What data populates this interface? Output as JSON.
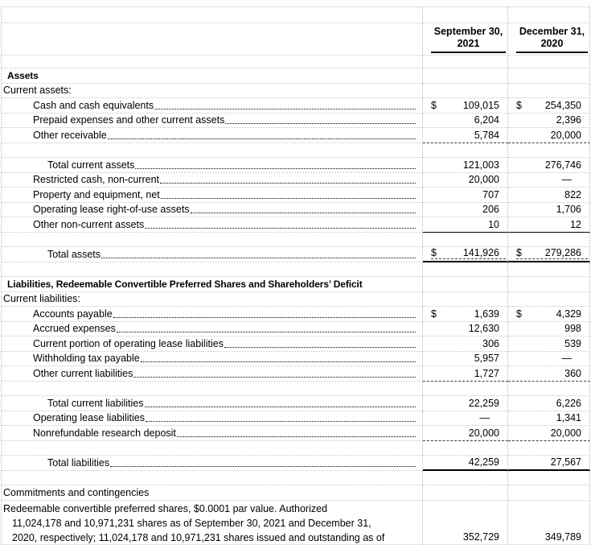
{
  "columns": [
    {
      "line1": "September 30,",
      "line2": "2021"
    },
    {
      "line1": "December 31,",
      "line2": "2020"
    }
  ],
  "rows": [
    {
      "kind": "section",
      "label": "Assets"
    },
    {
      "kind": "group",
      "label": "Current assets:"
    },
    {
      "kind": "item",
      "label": "Cash and cash equivalents",
      "dots": true,
      "cur1": "$",
      "v1": "109,015",
      "cur2": "$",
      "v2": "254,350"
    },
    {
      "kind": "item",
      "label": "Prepaid expenses and other current assets",
      "dots": true,
      "v1": "6,204",
      "v2": "2,396"
    },
    {
      "kind": "item",
      "label": "Other receivable",
      "dots": true,
      "v1": "5,784",
      "v2": "20,000",
      "underline": "dashed"
    },
    {
      "kind": "blank"
    },
    {
      "kind": "total",
      "label": "Total current assets",
      "dots": true,
      "v1": "121,003",
      "v2": "276,746"
    },
    {
      "kind": "item",
      "label": "Restricted cash, non-current",
      "dots": true,
      "v1": "20,000",
      "v2": "—"
    },
    {
      "kind": "item",
      "label": "Property and equipment, net",
      "dots": true,
      "v1": "707",
      "v2": "822"
    },
    {
      "kind": "item",
      "label": "Operating lease right-of-use assets",
      "dots": true,
      "v1": "206",
      "v2": "1,706"
    },
    {
      "kind": "item",
      "label": "Other non-current assets",
      "dots": true,
      "v1": "10",
      "v2": "12",
      "underline": "solid"
    },
    {
      "kind": "blank"
    },
    {
      "kind": "total",
      "label": "Total assets",
      "dots": true,
      "cur1": "$",
      "v1": "141,926",
      "cur2": "$",
      "v2": "279,286",
      "underline": "double"
    },
    {
      "kind": "blank"
    },
    {
      "kind": "section",
      "label": "Liabilities, Redeemable Convertible Preferred Shares and Shareholders’ Deficit"
    },
    {
      "kind": "group",
      "label": "Current liabilities:"
    },
    {
      "kind": "item",
      "label": "Accounts payable",
      "dots": true,
      "cur1": "$",
      "v1": "1,639",
      "cur2": "$",
      "v2": "4,329"
    },
    {
      "kind": "item",
      "label": "Accrued expenses",
      "dots": true,
      "v1": "12,630",
      "v2": "998"
    },
    {
      "kind": "item",
      "label": "Current portion of operating lease liabilities",
      "dots": true,
      "v1": "306",
      "v2": "539"
    },
    {
      "kind": "item",
      "label": "Withholding tax payable",
      "dots": true,
      "v1": "5,957",
      "v2": "—"
    },
    {
      "kind": "item",
      "label": "Other current liabilities",
      "dots": true,
      "v1": "1,727",
      "v2": "360",
      "underline": "dashed"
    },
    {
      "kind": "blank"
    },
    {
      "kind": "total",
      "label": "Total current liabilities",
      "dots": true,
      "v1": "22,259",
      "v2": "6,226"
    },
    {
      "kind": "item",
      "label": "Operating lease liabilities",
      "dots": true,
      "v1": "—",
      "v2": "1,341"
    },
    {
      "kind": "item",
      "label": "Nonrefundable research deposit",
      "dots": true,
      "v1": "20,000",
      "v2": "20,000",
      "underline": "dashed"
    },
    {
      "kind": "blank"
    },
    {
      "kind": "total",
      "label": "Total liabilities",
      "dots": true,
      "v1": "42,259",
      "v2": "27,567",
      "underline": "thick"
    },
    {
      "kind": "blank"
    },
    {
      "kind": "group",
      "label": "Commitments and contingencies"
    },
    {
      "kind": "wrap",
      "lines": [
        "Redeemable convertible preferred shares, $0.0001 par value. Authorized",
        "11,024,178 and 10,971,231 shares as of September 30, 2021 and December 31,",
        "2020, respectively; 11,024,178 and 10,971,231 shares issued and outstanding as of"
      ],
      "v1": "352,729",
      "v2": "349,789"
    }
  ]
}
